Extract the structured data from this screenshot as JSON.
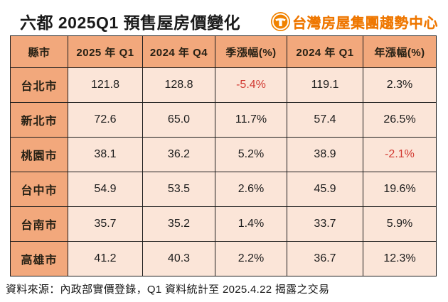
{
  "title": "六都 2025Q1 預售屋房價變化",
  "logo": {
    "text": "台灣房屋集團趨勢中心",
    "icon": "t-circle-icon",
    "color": "#ee7600"
  },
  "table": {
    "columns": [
      "縣市",
      "2025 年 Q1",
      "2024 年 Q4",
      "季漲幅(%)",
      "2024 年 Q1",
      "年漲幅(%)"
    ],
    "rows": [
      [
        "台北市",
        "121.8",
        "128.8",
        "-5.4%",
        "119.1",
        "2.3%"
      ],
      [
        "新北市",
        "72.6",
        "65.0",
        "11.7%",
        "57.4",
        "26.5%"
      ],
      [
        "桃園市",
        "38.1",
        "36.2",
        "5.2%",
        "38.9",
        "-2.1%"
      ],
      [
        "台中市",
        "54.9",
        "53.5",
        "2.6%",
        "45.9",
        "19.6%"
      ],
      [
        "台南市",
        "35.7",
        "35.2",
        "1.4%",
        "33.7",
        "5.9%"
      ],
      [
        "高雄市",
        "41.2",
        "40.3",
        "2.2%",
        "36.7",
        "12.3%"
      ]
    ]
  },
  "footer": "資料來源：內政部實價登錄，Q1 資料統計至 2025.4.22 揭露之交易",
  "colors": {
    "header_bg": "#f2a87c",
    "cell_bg": "#fbe5d8",
    "border": "#1c1c1c",
    "negative_text": "#d23a32",
    "brand_orange": "#ee7600"
  },
  "chart_data": {
    "type": "table",
    "title": "六都 2025Q1 預售屋房價變化",
    "columns": [
      "縣市",
      "2025 年 Q1",
      "2024 年 Q4",
      "季漲幅(%)",
      "2024 年 Q1",
      "年漲幅(%)"
    ],
    "rows": [
      {
        "city": "台北市",
        "price_2025_q1": 121.8,
        "price_2024_q4": 128.8,
        "qoq_change_pct": -5.4,
        "price_2024_q1": 119.1,
        "yoy_change_pct": 2.3
      },
      {
        "city": "新北市",
        "price_2025_q1": 72.6,
        "price_2024_q4": 65.0,
        "qoq_change_pct": 11.7,
        "price_2024_q1": 57.4,
        "yoy_change_pct": 26.5
      },
      {
        "city": "桃園市",
        "price_2025_q1": 38.1,
        "price_2024_q4": 36.2,
        "qoq_change_pct": 5.2,
        "price_2024_q1": 38.9,
        "yoy_change_pct": -2.1
      },
      {
        "city": "台中市",
        "price_2025_q1": 54.9,
        "price_2024_q4": 53.5,
        "qoq_change_pct": 2.6,
        "price_2024_q1": 45.9,
        "yoy_change_pct": 19.6
      },
      {
        "city": "台南市",
        "price_2025_q1": 35.7,
        "price_2024_q4": 35.2,
        "qoq_change_pct": 1.4,
        "price_2024_q1": 33.7,
        "yoy_change_pct": 5.9
      },
      {
        "city": "高雄市",
        "price_2025_q1": 41.2,
        "price_2024_q4": 40.3,
        "qoq_change_pct": 2.2,
        "price_2024_q1": 36.7,
        "yoy_change_pct": 12.3
      }
    ],
    "source": "資料來源：內政部實價登錄，Q1 資料統計至 2025.4.22 揭露之交易",
    "negative_value_color": "#d23a32"
  }
}
